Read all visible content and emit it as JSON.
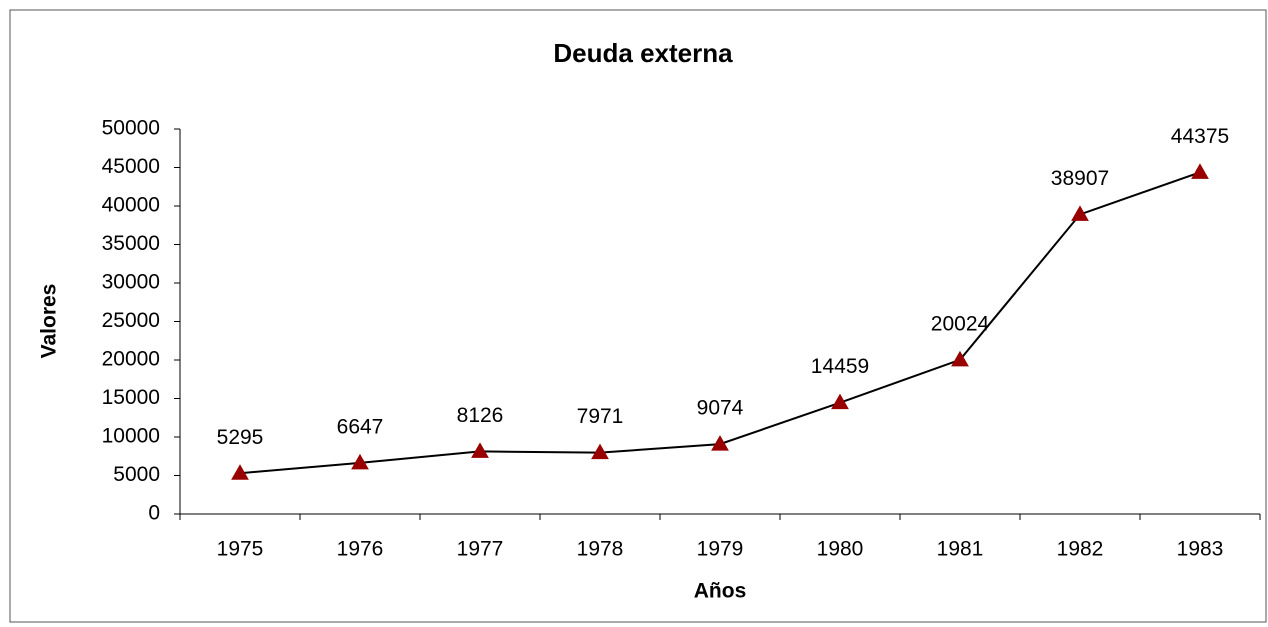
{
  "chart_data": {
    "type": "line",
    "title": "Deuda externa",
    "x_label": "Años",
    "y_label": "Valores",
    "categories": [
      "1975",
      "1976",
      "1977",
      "1978",
      "1979",
      "1980",
      "1981",
      "1982",
      "1983"
    ],
    "series": [
      {
        "name": "Deuda externa",
        "color": "#990000",
        "values": [
          5295,
          6647,
          8126,
          7971,
          9074,
          14459,
          20024,
          38907,
          44375
        ]
      }
    ],
    "ylim": [
      0,
      50000
    ],
    "yticks": [
      0,
      5000,
      10000,
      15000,
      20000,
      25000,
      30000,
      35000,
      40000,
      45000,
      50000
    ],
    "grid": false,
    "data_labels": true
  }
}
